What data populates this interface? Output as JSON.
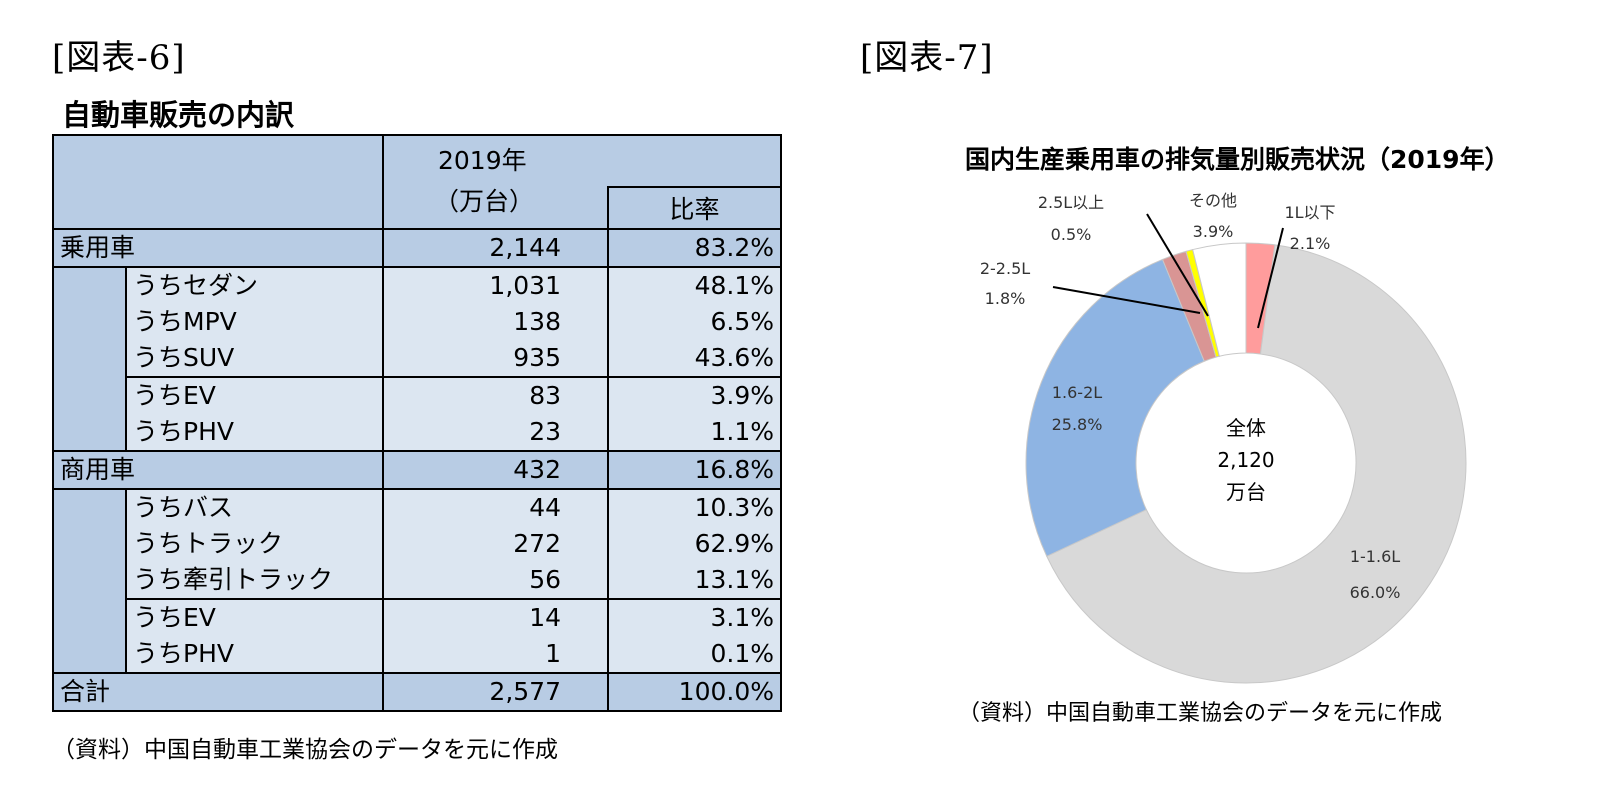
{
  "fig6": {
    "label": "[図表-6]",
    "title": "自動車販売の内訳",
    "header": {
      "year": "2019年",
      "unit": "（万台）",
      "ratio": "比率"
    },
    "rows": [
      {
        "label": "乗用車",
        "value": "2,144",
        "pct": "83.2%",
        "level": "cat"
      },
      {
        "label": "うちセダン",
        "value": "1,031",
        "pct": "48.1%",
        "level": "sub"
      },
      {
        "label": "うちMPV",
        "value": "138",
        "pct": "6.5%",
        "level": "sub"
      },
      {
        "label": "うちSUV",
        "value": "935",
        "pct": "43.6%",
        "level": "sub"
      },
      {
        "label": "うちEV",
        "value": "83",
        "pct": "3.9%",
        "level": "sub"
      },
      {
        "label": "うちPHV",
        "value": "23",
        "pct": "1.1%",
        "level": "sub"
      },
      {
        "label": "商用車",
        "value": "432",
        "pct": "16.8%",
        "level": "cat"
      },
      {
        "label": "うちバス",
        "value": "44",
        "pct": "10.3%",
        "level": "sub"
      },
      {
        "label": "うちトラック",
        "value": "272",
        "pct": "62.9%",
        "level": "sub"
      },
      {
        "label": "うち牽引トラック",
        "value": "56",
        "pct": "13.1%",
        "level": "sub"
      },
      {
        "label": "うちEV",
        "value": "14",
        "pct": "3.1%",
        "level": "sub"
      },
      {
        "label": "うちPHV",
        "value": "1",
        "pct": "0.1%",
        "level": "sub"
      },
      {
        "label": "合計",
        "value": "2,577",
        "pct": "100.0%",
        "level": "cat"
      }
    ],
    "source": "（資料）中国自動車工業協会のデータを元に作成"
  },
  "fig7": {
    "label": "[図表-7]",
    "source": "（資料）中国自動車工業協会のデータを元に作成"
  },
  "chart_data": {
    "type": "pie",
    "title": "国内生産乗用車の排気量別販売状況（2019年）",
    "center_label": [
      "全体",
      "2,120",
      "万台"
    ],
    "slices": [
      {
        "name": "1L以下",
        "value": 2.1,
        "value_label": "2.1%",
        "color": "#ff9c9c"
      },
      {
        "name": "1-1.6L",
        "value": 66.0,
        "value_label": "66.0%",
        "color": "#d9d9d9"
      },
      {
        "name": "1.6-2L",
        "value": 25.8,
        "value_label": "25.8%",
        "color": "#8eb4e3"
      },
      {
        "name": "2-2.5L",
        "value": 1.8,
        "value_label": "1.8%",
        "color": "#d99594"
      },
      {
        "name": "2.5L以上",
        "value": 0.5,
        "value_label": "0.5%",
        "color": "#ffff00"
      },
      {
        "name": "その他",
        "value": 3.9,
        "value_label": "3.9%",
        "color": "#ffffff"
      }
    ]
  }
}
